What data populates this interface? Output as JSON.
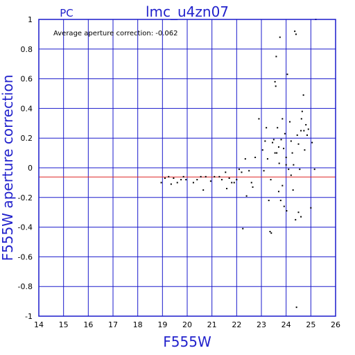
{
  "header": {
    "label": "PC",
    "title": "lmc_u4zn07"
  },
  "chart_data": {
    "type": "scatter",
    "title": "lmc_u4zn07",
    "subtitle_label": "PC",
    "xlabel": "F555W",
    "ylabel": "F555W aperture correction",
    "annotation": "Average aperture correction: -0.062",
    "xlim": [
      14,
      26
    ],
    "ylim": [
      -1,
      1
    ],
    "xticks": [
      14,
      15,
      16,
      17,
      18,
      19,
      20,
      21,
      22,
      23,
      24,
      25,
      26
    ],
    "yticks": [
      -1,
      -0.8,
      -0.6,
      -0.4,
      -0.2,
      0,
      0.2,
      0.4,
      0.6,
      0.8,
      1
    ],
    "ytick_labels": [
      "-1",
      "-0.8",
      "-0.6",
      "-0.4",
      "-0.2",
      "0",
      "0.2",
      "0.4",
      "0.6",
      "0.8",
      "1"
    ],
    "grid": true,
    "reference_lines": [
      {
        "y": 0,
        "color": "#1a1acc"
      },
      {
        "y": -0.062,
        "color": "#dd2222"
      }
    ],
    "colors": {
      "axis": "#1a1acc",
      "grid": "#1a1acc",
      "points": "#000000",
      "average_line": "#dd2222",
      "text": "#2222cc"
    },
    "points": [
      [
        18.95,
        -0.1
      ],
      [
        19.1,
        -0.07
      ],
      [
        19.25,
        -0.06
      ],
      [
        19.35,
        -0.11
      ],
      [
        19.45,
        -0.07
      ],
      [
        19.6,
        -0.1
      ],
      [
        19.75,
        -0.08
      ],
      [
        19.85,
        -0.06
      ],
      [
        19.95,
        -0.08
      ],
      [
        20.25,
        -0.1
      ],
      [
        20.4,
        -0.08
      ],
      [
        20.55,
        -0.06
      ],
      [
        20.65,
        -0.15
      ],
      [
        20.75,
        -0.06
      ],
      [
        20.95,
        -0.09
      ],
      [
        21.1,
        -0.06
      ],
      [
        21.3,
        -0.06
      ],
      [
        21.4,
        -0.08
      ],
      [
        21.55,
        -0.03
      ],
      [
        21.6,
        -0.14
      ],
      [
        21.7,
        -0.07
      ],
      [
        21.8,
        -0.1
      ],
      [
        21.9,
        -0.1
      ],
      [
        22.0,
        -0.08
      ],
      [
        22.1,
        -0.01
      ],
      [
        22.2,
        -0.03
      ],
      [
        22.25,
        -0.41
      ],
      [
        22.35,
        0.06
      ],
      [
        22.4,
        -0.19
      ],
      [
        22.5,
        -0.02
      ],
      [
        22.6,
        -0.1
      ],
      [
        22.65,
        -0.13
      ],
      [
        22.75,
        0.07
      ],
      [
        22.9,
        0.33
      ],
      [
        23.05,
        0.12
      ],
      [
        23.15,
        0.18
      ],
      [
        23.2,
        0.27
      ],
      [
        23.25,
        0.06
      ],
      [
        23.3,
        -0.22
      ],
      [
        23.35,
        -0.43
      ],
      [
        23.38,
        -0.08
      ],
      [
        23.4,
        -0.44
      ],
      [
        23.45,
        0.17
      ],
      [
        23.5,
        0.19
      ],
      [
        23.55,
        0.58
      ],
      [
        23.58,
        0.55
      ],
      [
        23.6,
        0.75
      ],
      [
        23.62,
        0.1
      ],
      [
        23.65,
        0.27
      ],
      [
        23.7,
        -0.16
      ],
      [
        23.72,
        0.03
      ],
      [
        23.75,
        0.88
      ],
      [
        23.78,
        -0.22
      ],
      [
        23.8,
        0.19
      ],
      [
        23.85,
        0.33
      ],
      [
        23.9,
        0.13
      ],
      [
        23.92,
        -0.26
      ],
      [
        23.95,
        0.23
      ],
      [
        24.0,
        0.07
      ],
      [
        24.02,
        -0.29
      ],
      [
        24.05,
        0.63
      ],
      [
        24.1,
        -0.01
      ],
      [
        24.15,
        0.31
      ],
      [
        24.2,
        0.18
      ],
      [
        24.25,
        0.1
      ],
      [
        24.28,
        -0.15
      ],
      [
        24.3,
        0.02
      ],
      [
        24.35,
        0.92
      ],
      [
        24.38,
        -0.35
      ],
      [
        24.4,
        0.9
      ],
      [
        24.42,
        -0.94
      ],
      [
        24.45,
        0.22
      ],
      [
        24.5,
        0.16
      ],
      [
        24.55,
        -0.01
      ],
      [
        24.6,
        0.25
      ],
      [
        24.62,
        0.33
      ],
      [
        24.65,
        0.38
      ],
      [
        24.7,
        0.49
      ],
      [
        24.72,
        0.25
      ],
      [
        24.75,
        0.12
      ],
      [
        24.8,
        0.29
      ],
      [
        24.85,
        0.22
      ],
      [
        24.9,
        0.26
      ],
      [
        25.0,
        -0.27
      ],
      [
        25.05,
        0.17
      ],
      [
        25.15,
        -0.01
      ],
      [
        25.2,
        1.0
      ],
      [
        23.55,
        0.1
      ],
      [
        23.85,
        -0.12
      ],
      [
        24.2,
        -0.05
      ],
      [
        24.5,
        -0.3
      ],
      [
        23.1,
        -0.02
      ],
      [
        23.7,
        0.14
      ],
      [
        24.0,
        0.02
      ],
      [
        24.6,
        -0.33
      ]
    ]
  }
}
